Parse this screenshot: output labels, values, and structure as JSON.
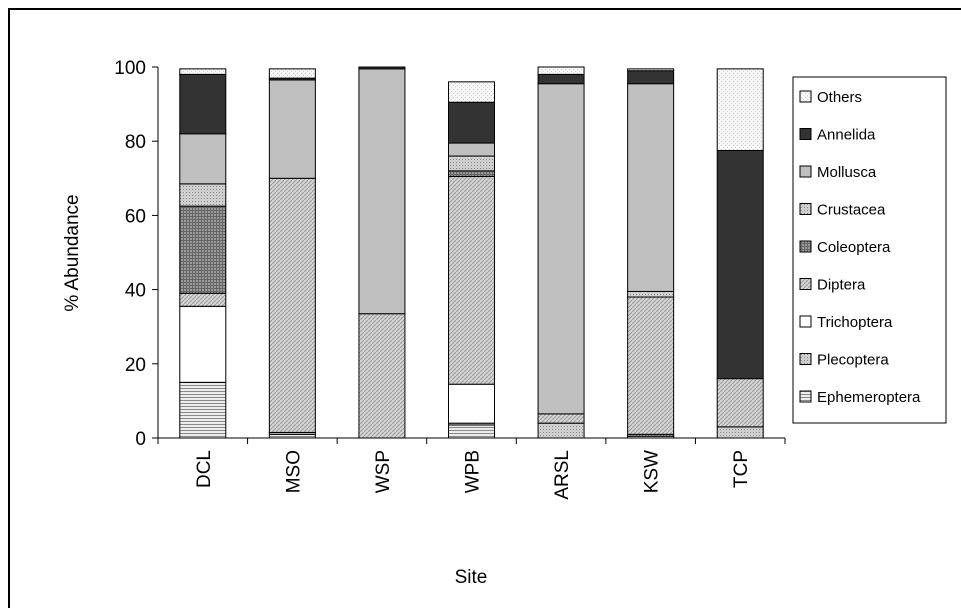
{
  "chart_data": {
    "type": "bar",
    "stacked": true,
    "title": "",
    "xlabel": "Site",
    "ylabel": "% Abundance",
    "ylim": [
      0,
      100
    ],
    "yticks": [
      0,
      20,
      40,
      60,
      80,
      100
    ],
    "grid": false,
    "legend_position": "right",
    "categories": [
      "DCL",
      "MSO",
      "WSP",
      "WPB",
      "ARSL",
      "KSW",
      "TCP"
    ],
    "series": [
      {
        "name": "Ephemeroptera",
        "values": [
          15.0,
          1.0,
          0,
          3.5,
          0,
          0.5,
          0
        ],
        "fill": "#cfcfcf",
        "pattern": "hlines"
      },
      {
        "name": "Plecoptera",
        "values": [
          0,
          0.5,
          0,
          0.5,
          4.0,
          0.5,
          3.0
        ],
        "fill": "#c6c6c6",
        "pattern": "dots"
      },
      {
        "name": "Trichoptera",
        "values": [
          20.5,
          0,
          0,
          10.5,
          0,
          0,
          0
        ],
        "fill": "#ffffff",
        "pattern": "none"
      },
      {
        "name": "Diptera",
        "values": [
          3.5,
          68.5,
          33.5,
          56.0,
          2.5,
          37.0,
          13.0
        ],
        "fill": "#c0c0c0",
        "pattern": "diag"
      },
      {
        "name": "Coleoptera",
        "values": [
          23.5,
          0,
          0,
          1.5,
          0,
          0,
          0
        ],
        "fill": "#888888",
        "pattern": "grid"
      },
      {
        "name": "Crustacea",
        "values": [
          6.0,
          0,
          0,
          4.0,
          0,
          1.5,
          0
        ],
        "fill": "#bdbdbd",
        "pattern": "dots"
      },
      {
        "name": "Mollusca",
        "values": [
          13.5,
          26.5,
          66.0,
          3.5,
          89.0,
          56.0,
          0
        ],
        "fill": "#c0c0c0",
        "pattern": "none"
      },
      {
        "name": "Annelida",
        "values": [
          16.0,
          0.5,
          0.5,
          11.0,
          2.5,
          3.5,
          61.5
        ],
        "fill": "#333333",
        "pattern": "none"
      },
      {
        "name": "Others",
        "values": [
          1.5,
          2.5,
          0,
          5.5,
          2.0,
          0.5,
          22.0
        ],
        "fill": "#f2f2f2",
        "pattern": "speckle"
      }
    ]
  }
}
